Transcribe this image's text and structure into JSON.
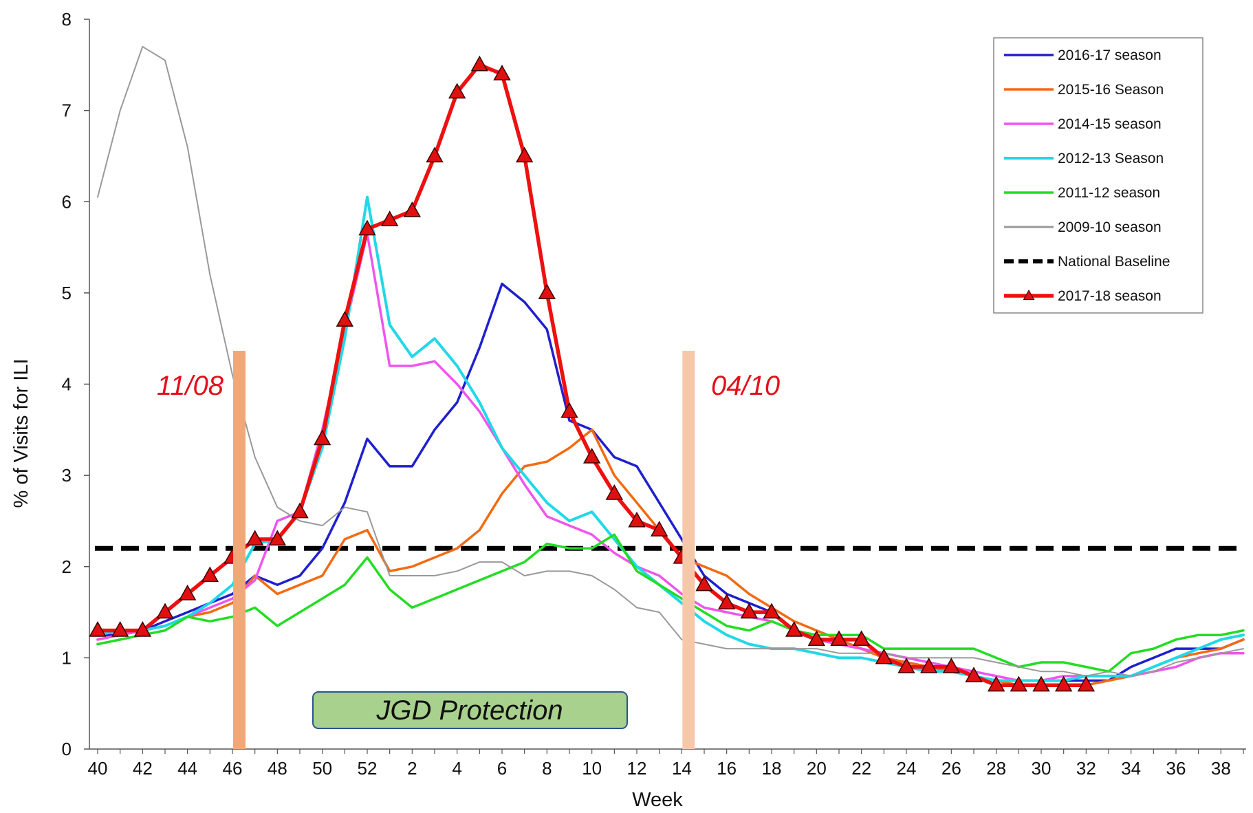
{
  "chart_data": {
    "type": "line",
    "title": "",
    "xlabel": "Week",
    "ylabel": "% of Visits for ILI",
    "ylim": [
      0,
      8
    ],
    "yticks": [
      "0",
      "1",
      "2",
      "3",
      "4",
      "5",
      "6",
      "7",
      "8"
    ],
    "x": [
      "40",
      "41",
      "42",
      "43",
      "44",
      "45",
      "46",
      "47",
      "48",
      "49",
      "50",
      "51",
      "52",
      "1",
      "2",
      "3",
      "4",
      "5",
      "6",
      "7",
      "8",
      "9",
      "10",
      "11",
      "12",
      "13",
      "14",
      "15",
      "16",
      "17",
      "18",
      "19",
      "20",
      "21",
      "22",
      "23",
      "24",
      "25",
      "26",
      "27",
      "28",
      "29",
      "30",
      "31",
      "32",
      "33",
      "34",
      "35",
      "36",
      "37",
      "38",
      "39"
    ],
    "xtick_labels": [
      "40",
      "42",
      "44",
      "46",
      "48",
      "50",
      "52",
      "2",
      "4",
      "6",
      "8",
      "10",
      "12",
      "14",
      "16",
      "18",
      "20",
      "22",
      "24",
      "26",
      "28",
      "30",
      "32",
      "34",
      "36",
      "38"
    ],
    "grid": false,
    "legend_position": "top-right",
    "series": [
      {
        "name": "2016-17 season",
        "color": "#1f1fd0",
        "width": 3.5,
        "marker": "none",
        "values": [
          1.25,
          1.25,
          1.3,
          1.4,
          1.5,
          1.6,
          1.7,
          1.9,
          1.8,
          1.9,
          2.2,
          2.7,
          3.4,
          3.1,
          3.1,
          3.5,
          3.8,
          4.4,
          5.1,
          4.9,
          4.6,
          3.6,
          3.5,
          3.2,
          3.1,
          2.7,
          2.3,
          1.9,
          1.7,
          1.6,
          1.5,
          1.3,
          1.2,
          1.15,
          1.1,
          1.0,
          0.95,
          0.9,
          0.85,
          0.8,
          0.75,
          0.75,
          0.75,
          0.75,
          0.75,
          0.75,
          0.9,
          1.0,
          1.1,
          1.1,
          1.1,
          1.2
        ]
      },
      {
        "name": "2015-16 Season",
        "color": "#f36a10",
        "width": 3.5,
        "marker": "none",
        "values": [
          1.2,
          1.25,
          1.3,
          1.35,
          1.45,
          1.5,
          1.6,
          1.9,
          1.7,
          1.8,
          1.9,
          2.3,
          2.4,
          1.95,
          2.0,
          2.1,
          2.2,
          2.4,
          2.8,
          3.1,
          3.15,
          3.3,
          3.5,
          3.0,
          2.7,
          2.4,
          2.1,
          2.0,
          1.9,
          1.7,
          1.55,
          1.4,
          1.3,
          1.2,
          1.1,
          1.0,
          0.95,
          0.9,
          0.85,
          0.8,
          0.75,
          0.7,
          0.7,
          0.7,
          0.7,
          0.75,
          0.8,
          0.9,
          1.0,
          1.05,
          1.1,
          1.2
        ]
      },
      {
        "name": "2014-15 season",
        "color": "#ee55ee",
        "width": 3.5,
        "marker": "none",
        "values": [
          1.2,
          1.25,
          1.3,
          1.35,
          1.45,
          1.55,
          1.65,
          1.85,
          2.5,
          2.6,
          3.5,
          4.6,
          5.65,
          4.2,
          4.2,
          4.25,
          4.0,
          3.7,
          3.3,
          2.9,
          2.55,
          2.45,
          2.35,
          2.15,
          2.0,
          1.9,
          1.7,
          1.55,
          1.5,
          1.45,
          1.4,
          1.3,
          1.2,
          1.15,
          1.1,
          1.05,
          1.0,
          0.95,
          0.9,
          0.85,
          0.8,
          0.75,
          0.75,
          0.8,
          0.8,
          0.8,
          0.8,
          0.85,
          0.9,
          1.0,
          1.05,
          1.05
        ]
      },
      {
        "name": "2012-13 Season",
        "color": "#21d8e6",
        "width": 4.0,
        "marker": "none",
        "values": [
          1.25,
          1.3,
          1.3,
          1.35,
          1.45,
          1.6,
          1.8,
          2.25,
          2.3,
          2.6,
          3.3,
          4.5,
          6.05,
          4.65,
          4.3,
          4.5,
          4.2,
          3.8,
          3.3,
          3.0,
          2.7,
          2.5,
          2.6,
          2.3,
          2.0,
          1.8,
          1.6,
          1.4,
          1.25,
          1.15,
          1.1,
          1.1,
          1.05,
          1.0,
          1.0,
          0.95,
          0.9,
          0.85,
          0.85,
          0.8,
          0.75,
          0.75,
          0.75,
          0.75,
          0.8,
          0.8,
          0.8,
          0.9,
          1.0,
          1.1,
          1.2,
          1.25
        ]
      },
      {
        "name": "2011-12 season",
        "color": "#22dd22",
        "width": 3.5,
        "marker": "none",
        "values": [
          1.15,
          1.2,
          1.25,
          1.3,
          1.45,
          1.4,
          1.45,
          1.55,
          1.35,
          1.5,
          1.65,
          1.8,
          2.1,
          1.75,
          1.55,
          1.65,
          1.75,
          1.85,
          1.95,
          2.05,
          2.25,
          2.2,
          2.2,
          2.35,
          1.95,
          1.8,
          1.65,
          1.5,
          1.35,
          1.3,
          1.4,
          1.3,
          1.25,
          1.25,
          1.25,
          1.1,
          1.1,
          1.1,
          1.1,
          1.1,
          1.0,
          0.9,
          0.95,
          0.95,
          0.9,
          0.85,
          1.05,
          1.1,
          1.2,
          1.25,
          1.25,
          1.3
        ]
      },
      {
        "name": "2009-10 season",
        "color": "#999999",
        "width": 2.0,
        "marker": "none",
        "values": [
          6.05,
          7.0,
          7.7,
          7.55,
          6.6,
          5.2,
          4.1,
          3.2,
          2.65,
          2.5,
          2.45,
          2.65,
          2.6,
          1.9,
          1.9,
          1.9,
          1.95,
          2.05,
          2.05,
          1.9,
          1.95,
          1.95,
          1.9,
          1.75,
          1.55,
          1.5,
          1.2,
          1.15,
          1.1,
          1.1,
          1.1,
          1.1,
          1.1,
          1.05,
          1.05,
          1.05,
          1.0,
          1.0,
          1.0,
          1.0,
          0.95,
          0.9,
          0.85,
          0.85,
          0.8,
          0.85,
          0.8,
          0.85,
          0.95,
          1.0,
          1.05,
          1.1
        ]
      },
      {
        "name": "2017-18 season",
        "color": "#ee1010",
        "width": 5.5,
        "marker": "triangle",
        "markerFill": "#e01010",
        "values": [
          1.3,
          1.3,
          1.3,
          1.5,
          1.7,
          1.9,
          2.1,
          2.3,
          2.3,
          2.6,
          3.4,
          4.7,
          5.7,
          5.8,
          5.9,
          6.5,
          7.2,
          7.5,
          7.4,
          6.5,
          5.0,
          3.7,
          3.2,
          2.8,
          2.5,
          2.4,
          2.1,
          1.8,
          1.6,
          1.5,
          1.5,
          1.3,
          1.2,
          1.2,
          1.2,
          1.0,
          0.9,
          0.9,
          0.9,
          0.8,
          0.7,
          0.7,
          0.7,
          0.7,
          0.7,
          null,
          null,
          null,
          null,
          null,
          null,
          null
        ]
      }
    ],
    "baseline": {
      "name": "National Baseline",
      "value": 2.2,
      "color": "#000000"
    },
    "legend_order": [
      "2016-17 season",
      "2015-16 Season",
      "2014-15 season",
      "2012-13 Season",
      "2011-12 season",
      "2009-10 season",
      "National Baseline",
      "2017-18 season"
    ],
    "annotations": {
      "start_date": "11/08",
      "end_date": "04/10",
      "start_week": "46",
      "end_week": "14",
      "protection_label": "JGD Protection",
      "start_bar_color": "#f0a878",
      "end_bar_color": "#f6c8aa",
      "label_color": "#e3101b",
      "box_fill": "#a9d18e",
      "box_stroke": "#2f528f"
    }
  }
}
